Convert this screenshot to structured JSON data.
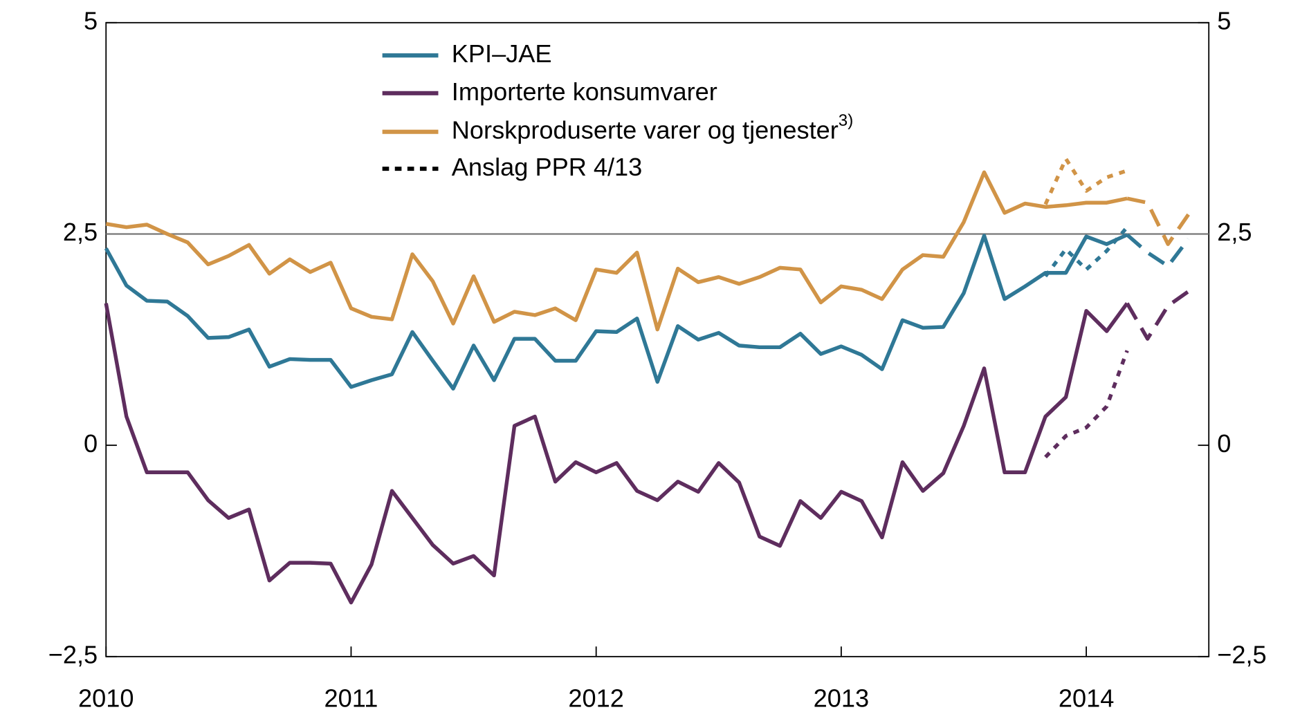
{
  "chart_data": {
    "type": "line",
    "categories": [
      "2010",
      null,
      null,
      null,
      null,
      null,
      null,
      null,
      null,
      null,
      null,
      null,
      "2011",
      null,
      null,
      null,
      null,
      null,
      null,
      null,
      null,
      null,
      null,
      null,
      "2012",
      null,
      null,
      null,
      null,
      null,
      null,
      null,
      null,
      null,
      null,
      null,
      "2013",
      null,
      null,
      null,
      null,
      null,
      null,
      null,
      null,
      null,
      null,
      null,
      "2014",
      null,
      null,
      null,
      null,
      null
    ],
    "ylim": [
      -2.5,
      5
    ],
    "yticks": [
      {
        "value": -2.5,
        "label": "−2,5"
      },
      0,
      {
        "value": 2.5,
        "label": "2,5"
      },
      5
    ],
    "y2lim": [
      -2.5,
      5
    ],
    "y2ticks": [
      {
        "value": -2.5,
        "label": "−2,5"
      },
      0,
      {
        "value": 2.5,
        "label": "2,5"
      },
      5
    ],
    "hline": 2.5,
    "ppr_label": "Anslag PPR 4/13",
    "series": [
      {
        "name": "KPI–JAE",
        "color": "#2f7896",
        "values": [
          2.33,
          1.89,
          1.71,
          1.7,
          1.53,
          1.27,
          1.28,
          1.37,
          0.93,
          1.02,
          1.01,
          1.01,
          0.69,
          0.77,
          0.84,
          1.34,
          1.0,
          0.67,
          1.18,
          0.77,
          1.26,
          1.26,
          1.0,
          1.0,
          1.35,
          1.34,
          1.5,
          0.75,
          1.41,
          1.25,
          1.33,
          1.18,
          1.16,
          1.16,
          1.32,
          1.08,
          1.17,
          1.07,
          0.9,
          1.48,
          1.39,
          1.4,
          1.8,
          2.48,
          1.73,
          1.88,
          2.04,
          2.04,
          2.47,
          2.38,
          2.49,
          null,
          null,
          null
        ],
        "projection": [
          null,
          null,
          null,
          null,
          null,
          null,
          null,
          null,
          null,
          null,
          null,
          null,
          null,
          null,
          null,
          null,
          null,
          null,
          null,
          null,
          null,
          null,
          null,
          null,
          null,
          null,
          null,
          null,
          null,
          null,
          null,
          null,
          null,
          null,
          null,
          null,
          null,
          null,
          null,
          null,
          null,
          null,
          null,
          null,
          null,
          null,
          null,
          null,
          null,
          null,
          2.49,
          2.28,
          2.12,
          2.44
        ],
        "ppr": [
          null,
          null,
          null,
          null,
          null,
          null,
          null,
          null,
          null,
          null,
          null,
          null,
          null,
          null,
          null,
          null,
          null,
          null,
          null,
          null,
          null,
          null,
          null,
          null,
          null,
          null,
          null,
          null,
          null,
          null,
          null,
          null,
          null,
          null,
          null,
          null,
          null,
          null,
          null,
          null,
          null,
          null,
          null,
          null,
          null,
          null,
          2.0,
          2.32,
          2.08,
          2.3,
          2.58,
          null,
          null,
          null
        ]
      },
      {
        "name": "Importerte konsumvarer",
        "color": "#5e2d5e",
        "values": [
          1.68,
          0.34,
          -0.32,
          -0.32,
          -0.32,
          -0.65,
          -0.86,
          -0.76,
          -1.6,
          -1.39,
          -1.39,
          -1.4,
          -1.86,
          -1.41,
          -0.54,
          -0.86,
          -1.18,
          -1.4,
          -1.31,
          -1.54,
          0.23,
          0.34,
          -0.43,
          -0.2,
          -0.32,
          -0.21,
          -0.54,
          -0.65,
          -0.43,
          -0.55,
          -0.21,
          -0.44,
          -1.08,
          -1.19,
          -0.66,
          -0.86,
          -0.55,
          -0.66,
          -1.09,
          -0.2,
          -0.54,
          -0.33,
          0.23,
          0.91,
          -0.32,
          -0.32,
          0.34,
          0.57,
          1.59,
          1.35,
          1.68,
          null,
          null,
          null
        ],
        "projection": [
          null,
          null,
          null,
          null,
          null,
          null,
          null,
          null,
          null,
          null,
          null,
          null,
          null,
          null,
          null,
          null,
          null,
          null,
          null,
          null,
          null,
          null,
          null,
          null,
          null,
          null,
          null,
          null,
          null,
          null,
          null,
          null,
          null,
          null,
          null,
          null,
          null,
          null,
          null,
          null,
          null,
          null,
          null,
          null,
          null,
          null,
          null,
          null,
          null,
          null,
          1.68,
          1.26,
          1.65,
          1.82
        ],
        "ppr": [
          null,
          null,
          null,
          null,
          null,
          null,
          null,
          null,
          null,
          null,
          null,
          null,
          null,
          null,
          null,
          null,
          null,
          null,
          null,
          null,
          null,
          null,
          null,
          null,
          null,
          null,
          null,
          null,
          null,
          null,
          null,
          null,
          null,
          null,
          null,
          null,
          null,
          null,
          null,
          null,
          null,
          null,
          null,
          null,
          null,
          null,
          -0.14,
          0.11,
          0.21,
          0.46,
          1.12,
          null,
          null,
          null
        ]
      },
      {
        "name": "Norskproduserte varer og tjenester",
        "name_note": "3)",
        "color": "#d19447",
        "values": [
          2.62,
          2.58,
          2.61,
          2.5,
          2.4,
          2.14,
          2.24,
          2.37,
          2.03,
          2.2,
          2.05,
          2.16,
          1.62,
          1.52,
          1.49,
          2.26,
          1.94,
          1.44,
          2.0,
          1.46,
          1.58,
          1.54,
          1.62,
          1.48,
          2.08,
          2.04,
          2.28,
          1.37,
          2.09,
          1.93,
          1.99,
          1.91,
          1.99,
          2.1,
          2.08,
          1.69,
          1.88,
          1.84,
          1.73,
          2.08,
          2.25,
          2.23,
          2.64,
          3.23,
          2.75,
          2.86,
          2.82,
          2.84,
          2.87,
          2.87,
          2.92,
          null,
          null,
          null
        ],
        "projection": [
          null,
          null,
          null,
          null,
          null,
          null,
          null,
          null,
          null,
          null,
          null,
          null,
          null,
          null,
          null,
          null,
          null,
          null,
          null,
          null,
          null,
          null,
          null,
          null,
          null,
          null,
          null,
          null,
          null,
          null,
          null,
          null,
          null,
          null,
          null,
          null,
          null,
          null,
          null,
          null,
          null,
          null,
          null,
          null,
          null,
          null,
          null,
          null,
          null,
          null,
          2.92,
          2.87,
          2.38,
          2.73
        ],
        "ppr": [
          null,
          null,
          null,
          null,
          null,
          null,
          null,
          null,
          null,
          null,
          null,
          null,
          null,
          null,
          null,
          null,
          null,
          null,
          null,
          null,
          null,
          null,
          null,
          null,
          null,
          null,
          null,
          null,
          null,
          null,
          null,
          null,
          null,
          null,
          null,
          null,
          null,
          null,
          null,
          null,
          null,
          null,
          null,
          null,
          null,
          null,
          2.85,
          3.39,
          3.01,
          3.17,
          3.25,
          null,
          null,
          null
        ]
      }
    ]
  }
}
